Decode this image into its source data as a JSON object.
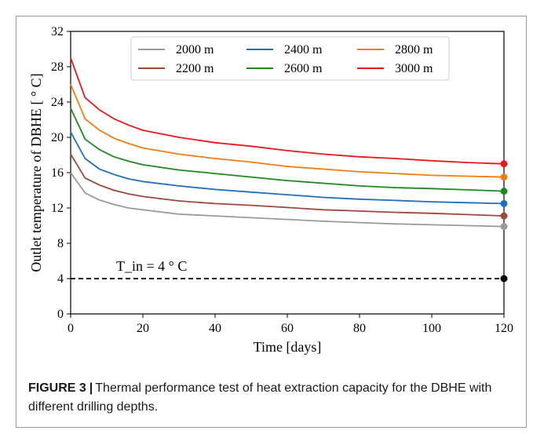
{
  "chart_data": {
    "type": "line",
    "xlabel": "Time [days]",
    "ylabel": "Outlet temperature of DBHE [ ° C]",
    "xlim": [
      0,
      120
    ],
    "ylim": [
      0,
      32
    ],
    "xticks": [
      0,
      20,
      40,
      60,
      80,
      100,
      120
    ],
    "yticks": [
      0,
      4,
      8,
      12,
      16,
      20,
      24,
      28,
      32
    ],
    "grid": false,
    "legend_position": "top-right",
    "x": [
      0,
      4,
      8,
      12,
      16,
      20,
      30,
      40,
      50,
      60,
      70,
      80,
      90,
      100,
      110,
      120
    ],
    "series": [
      {
        "name": "2000 m",
        "color": "#9a9a9a",
        "values": [
          16.0,
          13.7,
          12.9,
          12.4,
          12.0,
          11.8,
          11.3,
          11.1,
          10.9,
          10.7,
          10.5,
          10.35,
          10.2,
          10.1,
          10.0,
          9.9
        ]
      },
      {
        "name": "2200 m",
        "color": "#a0473c",
        "values": [
          18.1,
          15.4,
          14.6,
          14.0,
          13.6,
          13.3,
          12.8,
          12.5,
          12.3,
          12.05,
          11.8,
          11.65,
          11.5,
          11.4,
          11.25,
          11.1
        ]
      },
      {
        "name": "2400 m",
        "color": "#1f6fc0",
        "values": [
          20.6,
          17.6,
          16.4,
          15.8,
          15.3,
          15.0,
          14.5,
          14.1,
          13.8,
          13.5,
          13.2,
          13.0,
          12.85,
          12.7,
          12.6,
          12.5
        ]
      },
      {
        "name": "2600 m",
        "color": "#1e8a1e",
        "values": [
          23.3,
          19.8,
          18.6,
          17.8,
          17.3,
          16.9,
          16.3,
          15.9,
          15.5,
          15.1,
          14.8,
          14.5,
          14.3,
          14.2,
          14.05,
          13.9
        ]
      },
      {
        "name": "2800 m",
        "color": "#f07d14",
        "values": [
          26.0,
          22.1,
          20.8,
          19.9,
          19.3,
          18.8,
          18.1,
          17.6,
          17.2,
          16.7,
          16.4,
          16.1,
          15.9,
          15.7,
          15.6,
          15.5
        ]
      },
      {
        "name": "3000 m",
        "color": "#e8191c",
        "values": [
          29.0,
          24.5,
          23.1,
          22.1,
          21.4,
          20.8,
          20.0,
          19.4,
          19.0,
          18.5,
          18.1,
          17.8,
          17.6,
          17.35,
          17.15,
          17.0
        ]
      }
    ],
    "reference_line": {
      "label": "T_in = 4 ° C",
      "y": 4,
      "color": "#000000",
      "style": "dashed"
    }
  },
  "caption": {
    "label": "FIGURE 3",
    "separator": "|",
    "text": "Thermal performance test of heat extraction capacity for the DBHE with different drilling depths."
  }
}
